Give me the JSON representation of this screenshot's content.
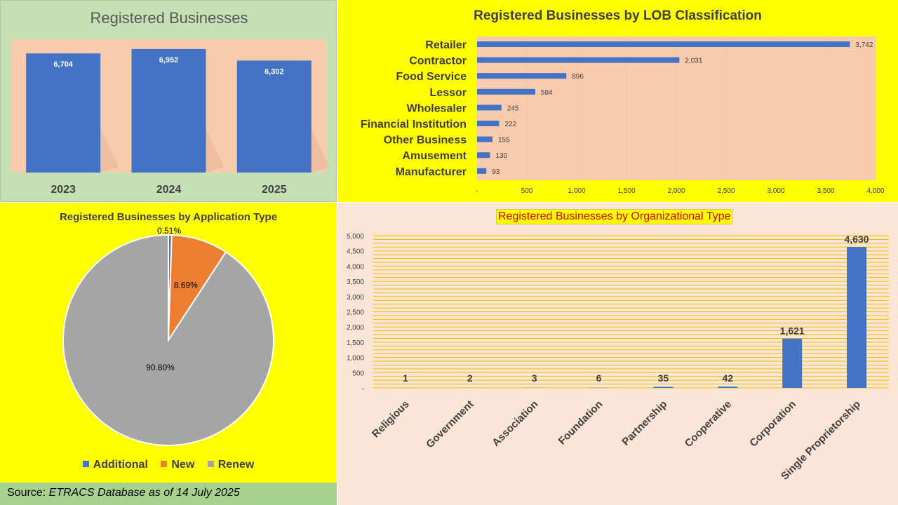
{
  "chart_data": [
    {
      "type": "bar",
      "title": "Registered Businesses",
      "categories": [
        "2023",
        "2024",
        "2025"
      ],
      "values": [
        6704,
        6952,
        6302
      ],
      "value_labels": [
        "6,704",
        "6,952",
        "6,302"
      ],
      "xlabel": "",
      "ylabel": "",
      "grid": false,
      "colors": {
        "bar": "#4472c4",
        "plot_bg": "#f8cbad",
        "panel_bg": "#c5e0b4"
      }
    },
    {
      "type": "bar",
      "orientation": "horizontal",
      "title": "Registered Businesses by LOB Classification",
      "categories": [
        "Retailer",
        "Contractor",
        "Food Service",
        "Lessor",
        "Wholesaler",
        "Financial Institution",
        "Other Business",
        "Amusement",
        "Manufacturer"
      ],
      "values": [
        3742,
        2031,
        896,
        584,
        245,
        222,
        155,
        130,
        93
      ],
      "value_labels": [
        "3,742",
        "2,031",
        "896",
        "584",
        "245",
        "222",
        "155",
        "130",
        "93"
      ],
      "xlim": [
        0,
        4000
      ],
      "xticks": [
        0,
        500,
        1000,
        1500,
        2000,
        2500,
        3000,
        3500,
        4000
      ],
      "xtick_labels": [
        "-",
        "500",
        "1,000",
        "1,500",
        "2,000",
        "2,500",
        "3,000",
        "3,500",
        "4,000"
      ],
      "grid": true,
      "colors": {
        "bar": "#4472c4",
        "plot_bg": "#f8cbad",
        "panel_bg": "#ffff00"
      }
    },
    {
      "type": "pie",
      "title": "Registered Businesses by Application Type",
      "labels": [
        "Additional",
        "New",
        "Renew"
      ],
      "values": [
        0.51,
        8.69,
        90.8
      ],
      "value_labels": [
        "0.51%",
        "8.69%",
        "90.80%"
      ],
      "legend": "bottom",
      "colors": [
        "#4472c4",
        "#ed7d31",
        "#a5a5a5"
      ]
    },
    {
      "type": "bar",
      "title": "Registered Businesses by Organizational Type",
      "categories": [
        "Religious",
        "Government",
        "Association",
        "Foundation",
        "Partnership",
        "Cooperative",
        "Corporation",
        "Single Proprietorship"
      ],
      "values": [
        1,
        2,
        3,
        6,
        35,
        42,
        1621,
        4630
      ],
      "value_labels": [
        "1",
        "2",
        "3",
        "6",
        "35",
        "42",
        "1,621",
        "4,630"
      ],
      "ylim": [
        0,
        5000
      ],
      "yticks": [
        0,
        500,
        1000,
        1500,
        2000,
        2500,
        3000,
        3500,
        4000,
        4500,
        5000
      ],
      "ytick_labels": [
        "-",
        "500",
        "1,000",
        "1,500",
        "2,000",
        "2,500",
        "3,000",
        "3,500",
        "4,000",
        "4,500",
        "5,000"
      ],
      "grid": true,
      "colors": {
        "bar": "#4472c4",
        "grid": "#f0c000",
        "panel_bg": "#fbe5d6"
      }
    }
  ],
  "source": {
    "label": "Source: ",
    "text": "ETRACS Database as of 14 July 2025"
  }
}
